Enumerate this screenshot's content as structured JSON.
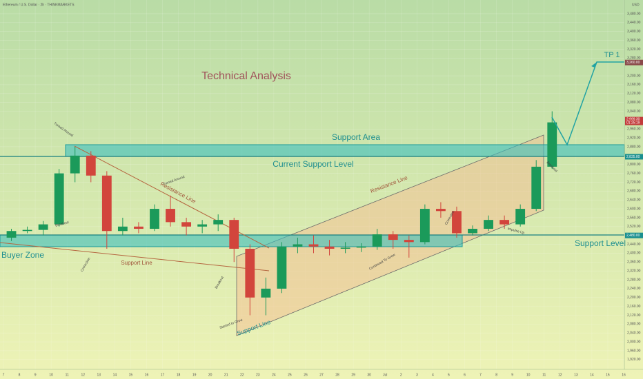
{
  "chart_data": {
    "type": "candlestick",
    "title": "Technical Analysis",
    "subtitle": "Ethereum / U.S. Dollar · 2h · THINKMARKETS",
    "currency": "USD",
    "categories": [
      "7",
      "8",
      "9",
      "10",
      "11",
      "12",
      "13",
      "14",
      "15",
      "16",
      "17",
      "18",
      "19",
      "20",
      "21",
      "22",
      "23",
      "24",
      "25",
      "26",
      "27",
      "28",
      "29",
      "30",
      "Jul",
      "2",
      "3",
      "4",
      "5",
      "6",
      "7",
      "8",
      "9",
      "10",
      "11",
      "12",
      "13",
      "14",
      "15",
      "16"
    ],
    "open": [
      2470,
      2500,
      2505,
      2530,
      2760,
      2840,
      2750,
      2500,
      2520,
      2510,
      2600,
      2540,
      2520,
      2530,
      2550,
      2420,
      2200,
      2240,
      2430,
      2440,
      2430,
      2420,
      2425,
      2430,
      2485,
      2460,
      2450,
      2600,
      2590,
      2490,
      2510,
      2550,
      2530,
      2600,
      2790,
      null,
      null,
      null,
      null,
      null
    ],
    "high": [
      2510,
      2520,
      2545,
      2780,
      2880,
      2860,
      2770,
      2560,
      2540,
      2620,
      2660,
      2560,
      2550,
      2575,
      2560,
      2440,
      2290,
      2450,
      2470,
      2480,
      2460,
      2450,
      2445,
      2510,
      2500,
      2480,
      2620,
      2630,
      2610,
      2525,
      2570,
      2570,
      2620,
      2820,
      3040,
      null,
      null,
      null,
      null,
      null
    ],
    "low": [
      2455,
      2490,
      2480,
      2520,
      2720,
      2720,
      2420,
      2480,
      2490,
      2500,
      2520,
      2480,
      2490,
      2500,
      2360,
      2120,
      2120,
      2220,
      2400,
      2400,
      2390,
      2400,
      2405,
      2415,
      2420,
      2380,
      2440,
      2560,
      2470,
      2480,
      2500,
      2510,
      2520,
      2590,
      2780,
      null,
      null,
      null,
      null,
      null
    ],
    "close": [
      2500,
      2505,
      2530,
      2760,
      2840,
      2750,
      2500,
      2520,
      2510,
      2600,
      2540,
      2520,
      2530,
      2550,
      2420,
      2200,
      2240,
      2430,
      2440,
      2430,
      2420,
      2425,
      2430,
      2485,
      2460,
      2450,
      2600,
      2590,
      2490,
      2510,
      2550,
      2530,
      2600,
      2790,
      2990,
      null,
      null,
      null,
      null,
      null
    ],
    "up_color": "#1b9a5a",
    "down_color": "#d2453c",
    "ylim": [
      1876,
      3542
    ],
    "yticks": [
      {
        "value": 1920,
        "label": "1,920.00"
      },
      {
        "value": 1960,
        "label": "1,960.00"
      },
      {
        "value": 2000,
        "label": "2,000.00"
      },
      {
        "value": 2040,
        "label": "2,040.00"
      },
      {
        "value": 2080,
        "label": "2,080.00"
      },
      {
        "value": 2120,
        "label": "2,120.00"
      },
      {
        "value": 2160,
        "label": "2,160.00"
      },
      {
        "value": 2200,
        "label": "2,200.00"
      },
      {
        "value": 2240,
        "label": "2,240.00"
      },
      {
        "value": 2280,
        "label": "2,280.00"
      },
      {
        "value": 2320,
        "label": "2,320.00"
      },
      {
        "value": 2360,
        "label": "2,360.00"
      },
      {
        "value": 2400,
        "label": "2,400.00"
      },
      {
        "value": 2440,
        "label": "2,440.00"
      },
      {
        "value": 2520,
        "label": "2,520.00"
      },
      {
        "value": 2560,
        "label": "2,560.00"
      },
      {
        "value": 2600,
        "label": "2,600.00"
      },
      {
        "value": 2640,
        "label": "2,640.00"
      },
      {
        "value": 2680,
        "label": "2,680.00"
      },
      {
        "value": 2720,
        "label": "2,720.00"
      },
      {
        "value": 2760,
        "label": "2,760.00"
      },
      {
        "value": 2800,
        "label": "2,800.00"
      },
      {
        "value": 2880,
        "label": "2,880.00"
      },
      {
        "value": 2920,
        "label": "2,920.00"
      },
      {
        "value": 2960,
        "label": "2,960.00"
      },
      {
        "value": 3040,
        "label": "3,040.00"
      },
      {
        "value": 3080,
        "label": "3,080.00"
      },
      {
        "value": 3120,
        "label": "3,120.00"
      },
      {
        "value": 3160,
        "label": "3,160.00"
      },
      {
        "value": 3200,
        "label": "3,200.00"
      },
      {
        "value": 3280,
        "label": "3,280.00"
      },
      {
        "value": 3320,
        "label": "3,320.00"
      },
      {
        "value": 3360,
        "label": "3,360.00"
      },
      {
        "value": 3400,
        "label": "3,400.00"
      },
      {
        "value": 3440,
        "label": "3,440.00"
      },
      {
        "value": 3480,
        "label": "3,480.00"
      }
    ],
    "grid": true,
    "levels": [
      {
        "value": 3260,
        "label": "3,260.00"
      },
      {
        "value": 2835,
        "label": "2,835.00"
      },
      {
        "value": 2480,
        "label": "2,480.00"
      }
    ],
    "last_price": {
      "value": 2999.3,
      "label": "2,999.30"
    },
    "countdown": "01:25:19",
    "annotations": [
      "TP 1",
      "Support Area",
      "Current Support Level",
      "Support Level",
      "Buyer Zone",
      "Support Line",
      "Resistance Line",
      "Resistance Line",
      "Support Line",
      "Turned Around",
      "Breakout",
      "Correction",
      "Turned Around",
      "Breakout",
      "Started to Grow",
      "Continued To Grow",
      "Correction",
      "Impulse Up",
      "Breakout"
    ]
  }
}
